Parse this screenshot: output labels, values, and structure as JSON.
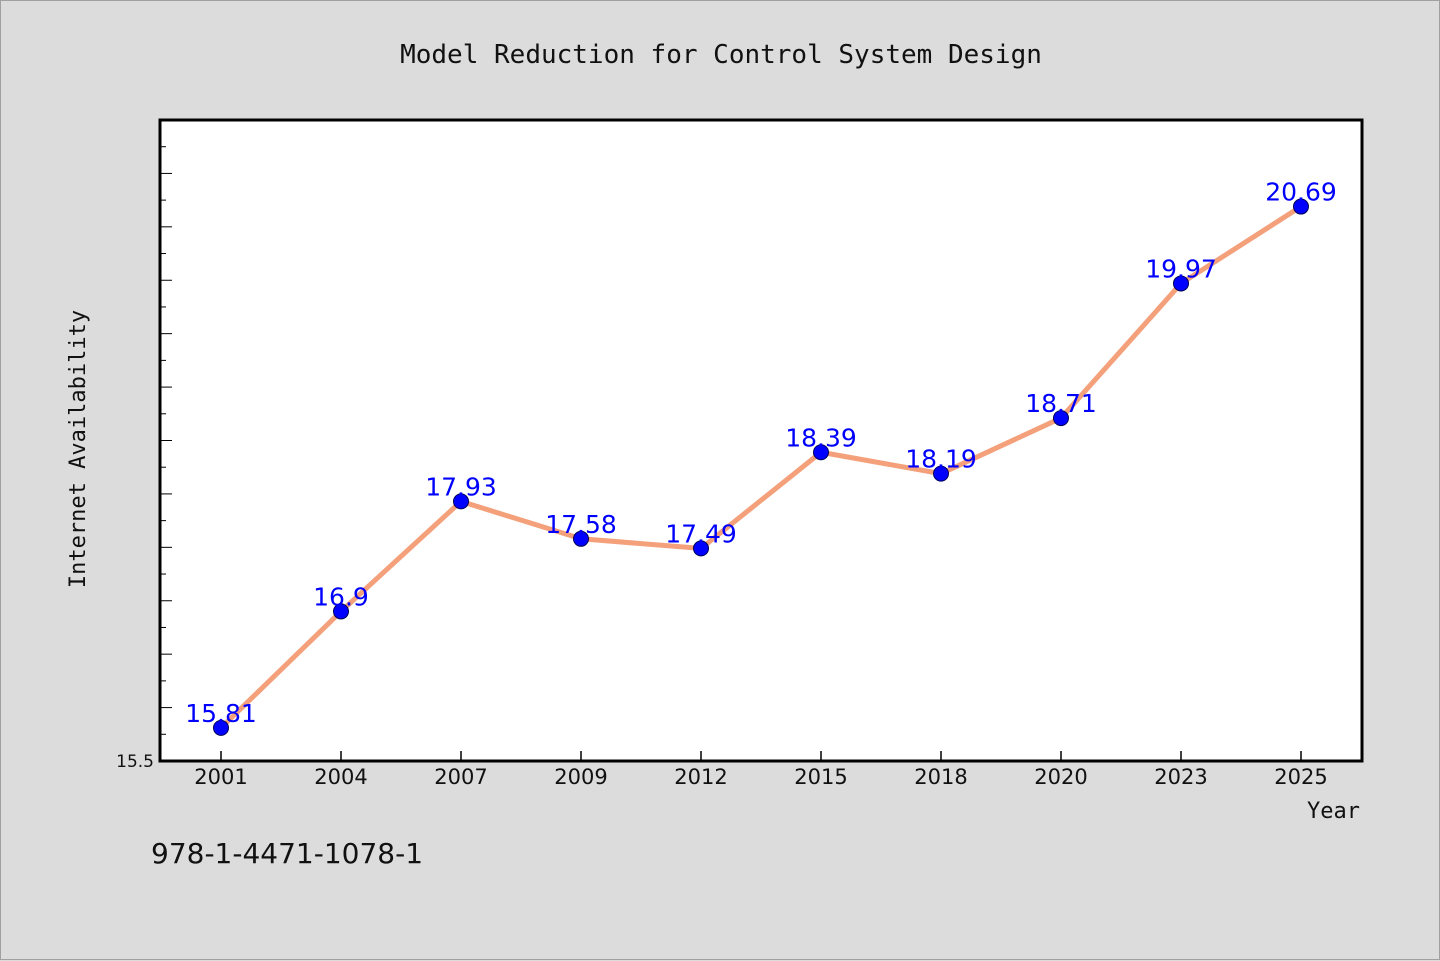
{
  "chart_data": {
    "type": "line",
    "title": "Model Reduction for Control System Design",
    "xlabel": "Year",
    "ylabel": "Internet Availability",
    "categories": [
      "2001",
      "2004",
      "2007",
      "2009",
      "2012",
      "2015",
      "2018",
      "2020",
      "2023",
      "2025"
    ],
    "series": [
      {
        "values": [
          15.81,
          16.9,
          17.93,
          17.58,
          17.49,
          18.39,
          18.19,
          18.71,
          19.97,
          20.69
        ]
      }
    ],
    "ylim": [
      15.5,
      21.5
    ],
    "yticks_labeled": [
      15.5
    ],
    "grid": false,
    "legend": "none",
    "colors": {
      "line": "#f4a07a",
      "marker": "#0000ff",
      "data_label": "#0000ff",
      "background": "#dcdcdc",
      "plot_background": "#ffffff"
    }
  },
  "footer": {
    "text": "978-1-4471-1078-1"
  }
}
